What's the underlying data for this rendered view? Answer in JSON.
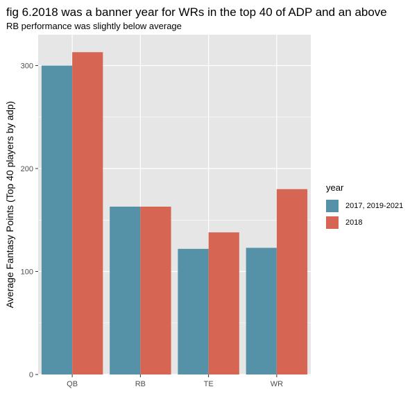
{
  "title": "fig 6.2018 was a banner year for WRs in the top 40 of ADP and an above",
  "subtitle": "RB performance was slightly below average",
  "legend": {
    "title": "year",
    "items": [
      {
        "label": "2017, 2019-2021",
        "color": "#5592A8"
      },
      {
        "label": "2018",
        "color": "#D66554"
      }
    ]
  },
  "chart_data": {
    "type": "bar",
    "categories": [
      "QB",
      "RB",
      "TE",
      "WR"
    ],
    "series": [
      {
        "name": "2017, 2019-2021",
        "color": "#5592A8",
        "values": [
          300,
          163,
          122,
          123
        ]
      },
      {
        "name": "2018",
        "color": "#D66554",
        "values": [
          313,
          163,
          138,
          180
        ]
      }
    ],
    "xlabel": "",
    "ylabel": "Average Fantasy Points (Top 40 players by adp)",
    "ylim": [
      0,
      330
    ],
    "yticks": [
      0,
      100,
      200,
      300
    ],
    "grid": true,
    "legend_position": "right",
    "panel_background": "#E6E6E6",
    "grid_color": "#FFFFFF"
  }
}
